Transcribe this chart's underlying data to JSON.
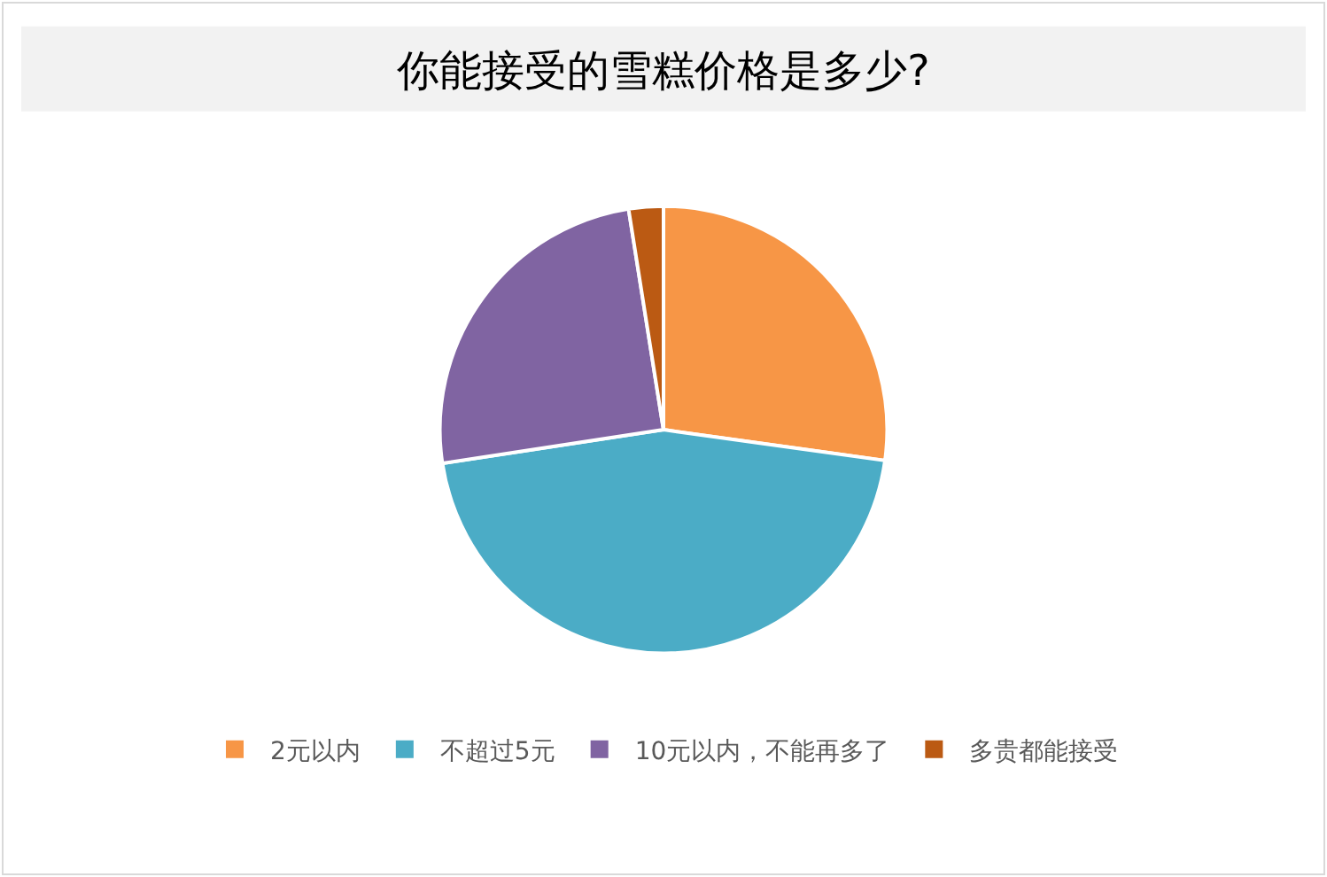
{
  "chart_data": {
    "type": "pie",
    "title": "你能接受的雪糕价格是多少?",
    "categories": [
      "2元以内",
      "不超过5元",
      "10元以内，不能再多了",
      "多贵都能接受"
    ],
    "values": [
      27.2,
      45.4,
      24.9,
      2.5
    ],
    "colors": [
      "#f79646",
      "#4bacc6",
      "#8064a2",
      "#bb5a13"
    ],
    "legend": "bottom"
  }
}
